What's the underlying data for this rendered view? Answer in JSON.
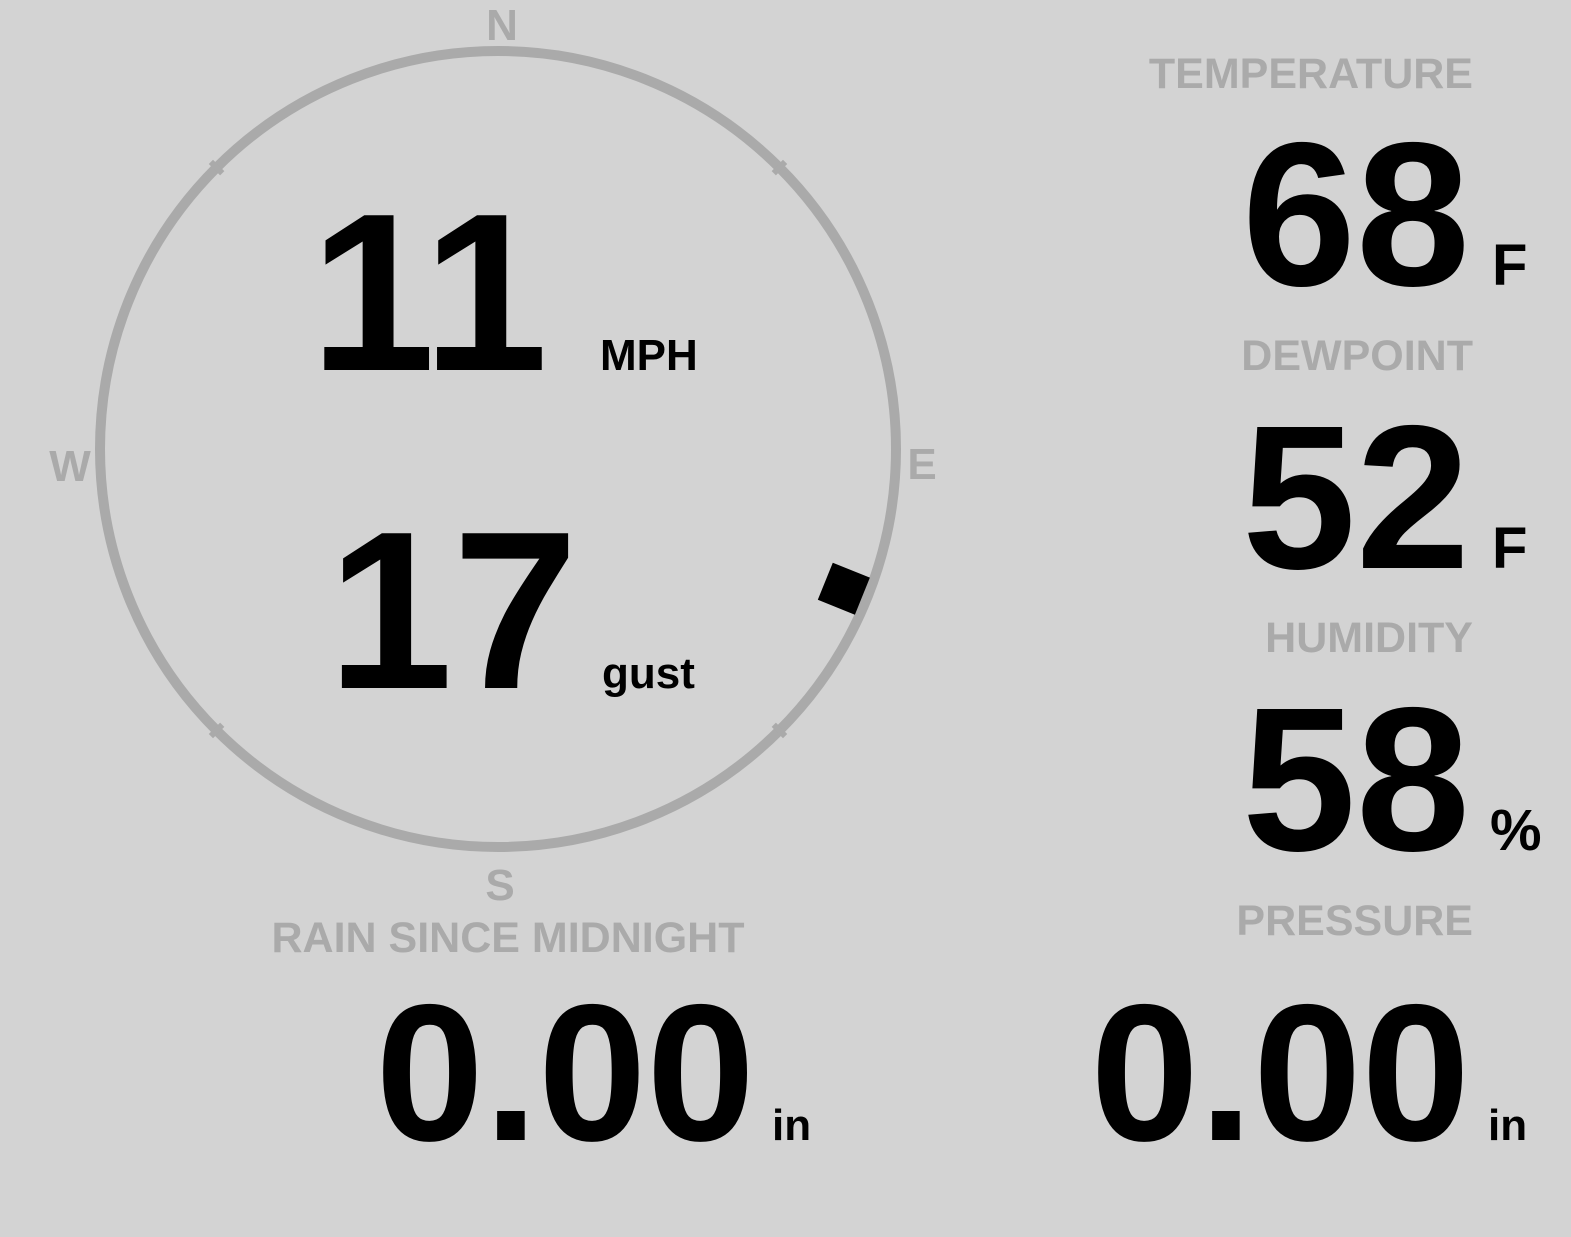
{
  "colors": {
    "background": "#d3d3d3",
    "label": "#aaaaaa",
    "value": "#000000",
    "compass_ring": "#aaaaaa",
    "wind_marker": "#000000"
  },
  "compass": {
    "north": "N",
    "south": "S",
    "east": "E",
    "west": "W",
    "wind_direction_degrees": 112,
    "wind_marker_icon": "wind-direction-square"
  },
  "wind": {
    "speed": "11",
    "speed_unit": "MPH",
    "gust": "17",
    "gust_unit": "gust"
  },
  "temperature": {
    "label": "TEMPERATURE",
    "value": "68",
    "unit": "F"
  },
  "dewpoint": {
    "label": "DEWPOINT",
    "value": "52",
    "unit": "F"
  },
  "humidity": {
    "label": "HUMIDITY",
    "value": "58",
    "unit": "%"
  },
  "rain": {
    "label": "RAIN SINCE MIDNIGHT",
    "value": "0.00",
    "unit": "in"
  },
  "pressure": {
    "label": "PRESSURE",
    "value": "0.00",
    "unit": "in"
  }
}
